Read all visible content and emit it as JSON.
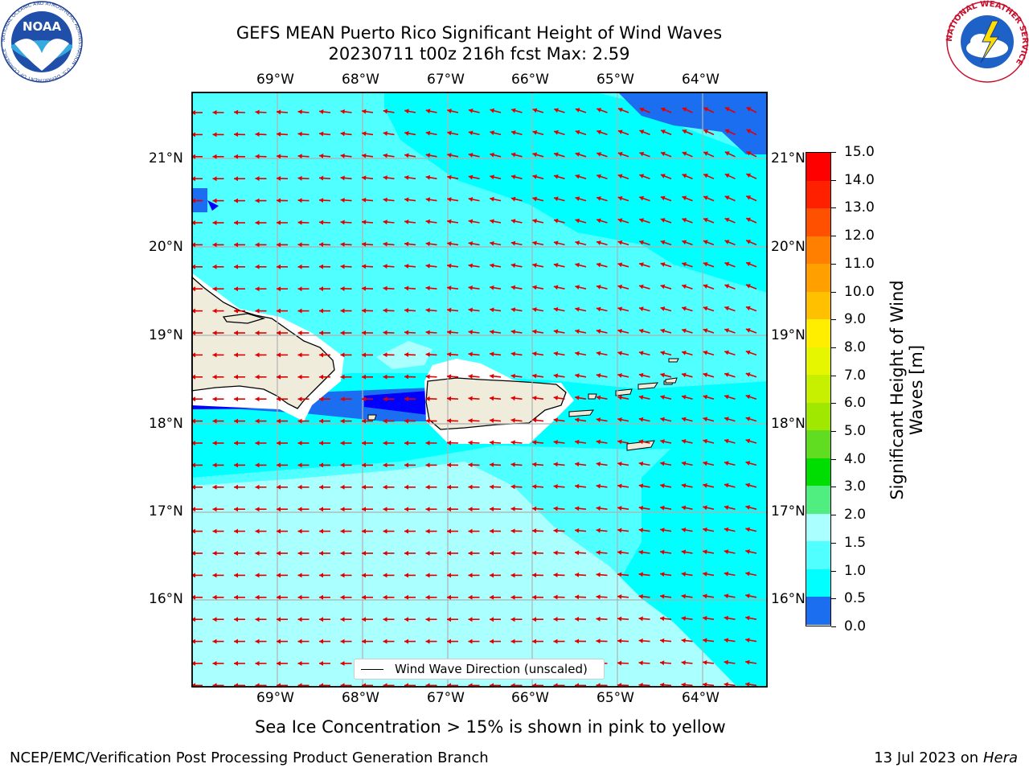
{
  "header": {
    "title_line1": "GEFS MEAN Puerto Rico Significant Height of Wind Waves",
    "title_line2": "20230711 t00z 216h fcst   Max: 2.59"
  },
  "map": {
    "lon_labels": [
      "69°W",
      "68°W",
      "67°W",
      "66°W",
      "65°W",
      "64°W"
    ],
    "lat_labels": [
      "21°N",
      "20°N",
      "19°N",
      "18°N",
      "17°N",
      "16°N"
    ],
    "legend_label": "Wind Wave Direction (unscaled)",
    "arrow_color": "#e00000",
    "land_color": "#efecdc"
  },
  "colorbar": {
    "label": "Significant Height of Wind Waves [m]",
    "ticks": [
      "15.0",
      "14.0",
      "13.0",
      "12.0",
      "11.0",
      "10.0",
      "9.0",
      "8.0",
      "7.0",
      "6.0",
      "5.0",
      "4.0",
      "3.0",
      "2.0",
      "1.5",
      "1.0",
      "0.5",
      "0.0"
    ],
    "colors_top_to_bottom": [
      "#ff0000",
      "#ff2000",
      "#ff5000",
      "#ff8000",
      "#ffa000",
      "#ffc000",
      "#ffee00",
      "#e6f500",
      "#c6f000",
      "#a0e800",
      "#60dd20",
      "#00dd00",
      "#50ee80",
      "#aaffff",
      "#50ffff",
      "#00ffff",
      "#1c6ef0",
      "#0000ff"
    ]
  },
  "note": "Sea Ice Concentration > 15% is shown in pink to yellow",
  "footer": {
    "left": "NCEP/EMC/Verification Post Processing Product Generation Branch",
    "right_prefix": "13 Jul 2023 on ",
    "right_host": "Hera"
  },
  "logos": {
    "noaa_text": "NOAA",
    "noaa_ring": "NATIONAL OCEANIC AND ATMOSPHERIC ADMINISTRATION · U.S. DEPARTMENT OF COMMERCE",
    "nws_ring": "NATIONAL WEATHER SERVICE"
  }
}
